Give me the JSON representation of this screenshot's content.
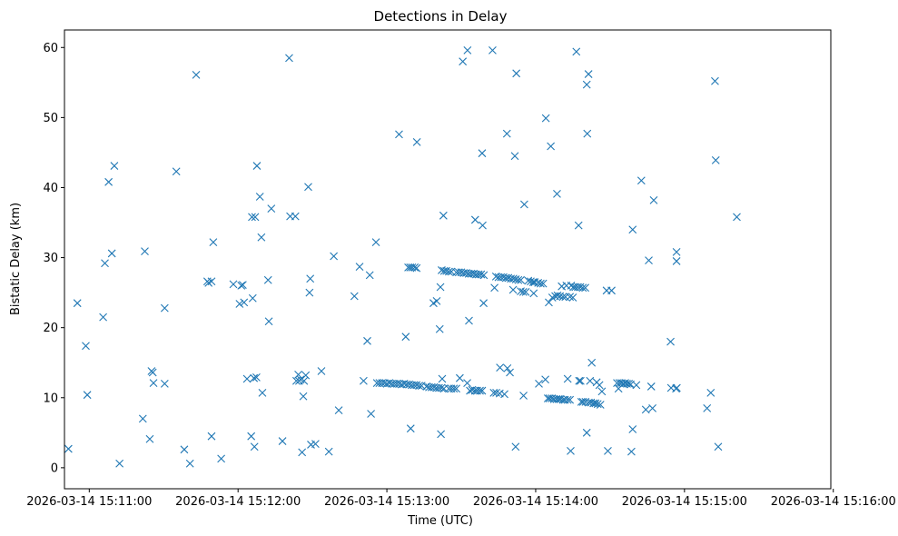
{
  "chart_data": {
    "type": "scatter",
    "title": "Detections in Delay",
    "xlabel": "Time (UTC)",
    "ylabel": "Bistatic Delay (km)",
    "x_unit": "seconds after 2026-03-14 15:10:50",
    "xlim": [
      0,
      309
    ],
    "ylim": [
      -3,
      62.5
    ],
    "marker": "x",
    "color": "#1f77b4",
    "grid": false,
    "xticks": [
      {
        "value": 10,
        "label": "2026-03-14 15:11:00"
      },
      {
        "value": 70,
        "label": "2026-03-14 15:12:00"
      },
      {
        "value": 130,
        "label": "2026-03-14 15:13:00"
      },
      {
        "value": 190,
        "label": "2026-03-14 15:14:00"
      },
      {
        "value": 250,
        "label": "2026-03-14 15:15:00"
      },
      {
        "value": 310,
        "label": "2026-03-14 15:16:00"
      }
    ],
    "yticks": [
      {
        "value": 0,
        "label": "0"
      },
      {
        "value": 10,
        "label": "10"
      },
      {
        "value": 20,
        "label": "20"
      },
      {
        "value": 30,
        "label": "30"
      },
      {
        "value": 40,
        "label": "40"
      },
      {
        "value": 50,
        "label": "50"
      },
      {
        "value": 60,
        "label": "60"
      }
    ],
    "series": [
      {
        "name": "detections",
        "points": [
          [
            1.6,
            2.7
          ],
          [
            5.2,
            23.5
          ],
          [
            8.6,
            17.4
          ],
          [
            9.2,
            10.4
          ],
          [
            15.6,
            21.5
          ],
          [
            16.3,
            29.2
          ],
          [
            17.8,
            40.8
          ],
          [
            19.1,
            30.6
          ],
          [
            20.1,
            43.1
          ],
          [
            22.2,
            0.6
          ],
          [
            31.6,
            7.0
          ],
          [
            32.4,
            30.9
          ],
          [
            34.4,
            4.1
          ],
          [
            35.1,
            13.8
          ],
          [
            35.6,
            13.6
          ],
          [
            35.9,
            12.1
          ],
          [
            40.4,
            22.8
          ],
          [
            40.4,
            12.0
          ],
          [
            45.1,
            42.3
          ],
          [
            48.3,
            2.6
          ],
          [
            50.6,
            0.6
          ],
          [
            53.1,
            56.1
          ],
          [
            57.6,
            26.6
          ],
          [
            58.1,
            26.4
          ],
          [
            59.3,
            26.6
          ],
          [
            59.3,
            4.5
          ],
          [
            60.0,
            32.2
          ],
          [
            63.2,
            1.3
          ],
          [
            68.1,
            26.2
          ],
          [
            70.6,
            23.4
          ],
          [
            71.3,
            26.0
          ],
          [
            71.9,
            26.1
          ],
          [
            72.4,
            23.6
          ],
          [
            73.6,
            12.7
          ],
          [
            75.3,
            4.5
          ],
          [
            75.6,
            35.8
          ],
          [
            75.9,
            24.2
          ],
          [
            76.4,
            12.8
          ],
          [
            76.6,
            3.0
          ],
          [
            76.9,
            35.8
          ],
          [
            77.4,
            12.9
          ],
          [
            77.6,
            43.1
          ],
          [
            78.8,
            38.7
          ],
          [
            79.4,
            32.9
          ],
          [
            79.8,
            10.7
          ],
          [
            82.1,
            26.8
          ],
          [
            82.4,
            20.9
          ],
          [
            83.4,
            37.0
          ],
          [
            87.9,
            3.8
          ],
          [
            90.6,
            58.5
          ],
          [
            91.0,
            35.9
          ],
          [
            93.1,
            35.9
          ],
          [
            93.5,
            12.4
          ],
          [
            94.3,
            13.3
          ],
          [
            94.6,
            12.4
          ],
          [
            95.2,
            12.6
          ],
          [
            95.8,
            2.2
          ],
          [
            96.3,
            10.2
          ],
          [
            96.6,
            12.4
          ],
          [
            97.3,
            13.2
          ],
          [
            98.3,
            40.1
          ],
          [
            98.8,
            25.0
          ],
          [
            99.1,
            27.0
          ],
          [
            99.4,
            3.3
          ],
          [
            101.2,
            3.4
          ],
          [
            103.6,
            13.8
          ],
          [
            106.6,
            2.3
          ],
          [
            108.6,
            30.2
          ],
          [
            110.6,
            8.2
          ],
          [
            116.9,
            24.5
          ],
          [
            119.0,
            28.7
          ],
          [
            120.6,
            12.4
          ],
          [
            122.1,
            18.1
          ],
          [
            123.1,
            27.5
          ],
          [
            123.6,
            7.7
          ],
          [
            125.6,
            32.2
          ],
          [
            126.0,
            12.1
          ],
          [
            127.0,
            12.1
          ],
          [
            128.0,
            12.1
          ],
          [
            129.0,
            12.1
          ],
          [
            130.0,
            12.0
          ],
          [
            131.0,
            12.1
          ],
          [
            132.0,
            12.0
          ],
          [
            133.0,
            12.0
          ],
          [
            134.0,
            12.0
          ],
          [
            134.9,
            47.6
          ],
          [
            135.0,
            12.0
          ],
          [
            136.0,
            11.9
          ],
          [
            137.0,
            12.0
          ],
          [
            137.6,
            18.7
          ],
          [
            138.0,
            11.9
          ],
          [
            138.6,
            28.6
          ],
          [
            139.0,
            11.9
          ],
          [
            139.4,
            28.6
          ],
          [
            139.6,
            5.6
          ],
          [
            140.0,
            11.8
          ],
          [
            140.2,
            28.6
          ],
          [
            141.0,
            11.8
          ],
          [
            141.2,
            28.6
          ],
          [
            142.0,
            11.8
          ],
          [
            142.0,
            28.5
          ],
          [
            142.1,
            46.5
          ],
          [
            143.0,
            11.7
          ],
          [
            144.0,
            11.7
          ],
          [
            146.0,
            11.6
          ],
          [
            147.0,
            11.5
          ],
          [
            148.0,
            11.5
          ],
          [
            148.8,
            23.5
          ],
          [
            149.0,
            11.5
          ],
          [
            150.0,
            11.4
          ],
          [
            150.1,
            23.8
          ],
          [
            151.0,
            11.4
          ],
          [
            151.3,
            19.8
          ],
          [
            151.6,
            25.8
          ],
          [
            151.8,
            4.8
          ],
          [
            152.0,
            11.4
          ],
          [
            152.1,
            28.2
          ],
          [
            152.3,
            12.7
          ],
          [
            152.8,
            36.0
          ],
          [
            153.0,
            11.3
          ],
          [
            153.1,
            28.1
          ],
          [
            154.0,
            28.1
          ],
          [
            155.0,
            28.0
          ],
          [
            155.0,
            11.3
          ],
          [
            156.0,
            28.0
          ],
          [
            156.0,
            11.3
          ],
          [
            157.0,
            11.3
          ],
          [
            158.0,
            27.9
          ],
          [
            158.0,
            11.3
          ],
          [
            159.0,
            27.9
          ],
          [
            159.4,
            12.8
          ],
          [
            160.0,
            27.9
          ],
          [
            160.6,
            58.0
          ],
          [
            161.0,
            27.8
          ],
          [
            162.0,
            27.8
          ],
          [
            162.4,
            12.1
          ],
          [
            162.5,
            59.6
          ],
          [
            163.0,
            27.7
          ],
          [
            163.1,
            21.0
          ],
          [
            163.5,
            11.0
          ],
          [
            164.0,
            27.7
          ],
          [
            164.4,
            11.1
          ],
          [
            165.0,
            27.7
          ],
          [
            165.5,
            11.0
          ],
          [
            165.6,
            35.4
          ],
          [
            166.0,
            27.6
          ],
          [
            166.4,
            11.0
          ],
          [
            167.0,
            27.6
          ],
          [
            167.5,
            11.0
          ],
          [
            168.0,
            27.6
          ],
          [
            168.4,
            44.9
          ],
          [
            168.4,
            11.0
          ],
          [
            168.6,
            34.6
          ],
          [
            169.0,
            23.5
          ],
          [
            169.1,
            27.5
          ],
          [
            172.6,
            59.6
          ],
          [
            173.1,
            10.7
          ],
          [
            173.4,
            25.7
          ],
          [
            174.0,
            27.3
          ],
          [
            174.1,
            10.7
          ],
          [
            175.0,
            27.2
          ],
          [
            175.5,
            10.6
          ],
          [
            175.6,
            14.3
          ],
          [
            176.0,
            27.2
          ],
          [
            177.0,
            27.2
          ],
          [
            177.4,
            10.5
          ],
          [
            178.0,
            27.1
          ],
          [
            178.4,
            47.7
          ],
          [
            178.6,
            14.2
          ],
          [
            179.0,
            27.1
          ],
          [
            179.6,
            13.6
          ],
          [
            180.0,
            27.0
          ],
          [
            180.9,
            25.4
          ],
          [
            181.0,
            27.0
          ],
          [
            181.6,
            44.5
          ],
          [
            181.9,
            3.0
          ],
          [
            182.0,
            26.9
          ],
          [
            182.2,
            56.3
          ],
          [
            183.0,
            26.8
          ],
          [
            184.0,
            25.2
          ],
          [
            184.0,
            26.8
          ],
          [
            185.0,
            25.1
          ],
          [
            185.1,
            10.3
          ],
          [
            185.4,
            37.6
          ],
          [
            186.0,
            25.1
          ],
          [
            187.0,
            26.7
          ],
          [
            188.0,
            26.6
          ],
          [
            189.0,
            26.5
          ],
          [
            189.2,
            24.9
          ],
          [
            189.6,
            26.5
          ],
          [
            191.0,
            26.4
          ],
          [
            191.3,
            12.0
          ],
          [
            192.0,
            26.3
          ],
          [
            193.0,
            26.3
          ],
          [
            193.9,
            12.6
          ],
          [
            194.1,
            49.9
          ],
          [
            194.9,
            9.9
          ],
          [
            195.3,
            23.6
          ],
          [
            195.6,
            9.9
          ],
          [
            196.1,
            45.9
          ],
          [
            196.5,
            9.9
          ],
          [
            196.7,
            24.3
          ],
          [
            197.4,
            9.8
          ],
          [
            197.9,
            24.5
          ],
          [
            198.4,
            9.8
          ],
          [
            198.6,
            39.1
          ],
          [
            198.8,
            24.6
          ],
          [
            199.3,
            9.8
          ],
          [
            199.8,
            24.5
          ],
          [
            200.0,
            9.8
          ],
          [
            200.5,
            25.9
          ],
          [
            201.0,
            24.4
          ],
          [
            201.1,
            9.7
          ],
          [
            201.8,
            9.7
          ],
          [
            202.0,
            24.4
          ],
          [
            202.4,
            26.0
          ],
          [
            202.9,
            9.7
          ],
          [
            202.9,
            12.7
          ],
          [
            203.8,
            24.4
          ],
          [
            203.8,
            9.7
          ],
          [
            204.1,
            2.4
          ],
          [
            204.3,
            26.0
          ],
          [
            205.0,
            24.3
          ],
          [
            205.2,
            25.8
          ],
          [
            206.0,
            25.8
          ],
          [
            206.4,
            59.4
          ],
          [
            207.0,
            25.8
          ],
          [
            207.3,
            34.6
          ],
          [
            207.5,
            12.4
          ],
          [
            208.0,
            25.8
          ],
          [
            208.1,
            12.4
          ],
          [
            208.4,
            9.4
          ],
          [
            209.0,
            25.7
          ],
          [
            209.1,
            9.4
          ],
          [
            210.0,
            25.7
          ],
          [
            210.1,
            9.4
          ],
          [
            210.6,
            5.0
          ],
          [
            210.6,
            54.7
          ],
          [
            210.8,
            47.7
          ],
          [
            211.3,
            56.2
          ],
          [
            211.4,
            9.3
          ],
          [
            211.9,
            12.4
          ],
          [
            212.3,
            9.3
          ],
          [
            212.6,
            15.0
          ],
          [
            213.3,
            9.2
          ],
          [
            214.1,
            9.2
          ],
          [
            214.6,
            12.2
          ],
          [
            215.0,
            9.1
          ],
          [
            215.7,
            11.8
          ],
          [
            216.1,
            9.0
          ],
          [
            216.7,
            10.9
          ],
          [
            218.6,
            25.3
          ],
          [
            219.1,
            2.4
          ],
          [
            220.6,
            25.3
          ],
          [
            222.8,
            12.1
          ],
          [
            223.4,
            11.3
          ],
          [
            223.8,
            12.1
          ],
          [
            224.6,
            12.1
          ],
          [
            225.4,
            12.0
          ],
          [
            226.1,
            12.1
          ],
          [
            226.8,
            12.0
          ],
          [
            227.6,
            12.0
          ],
          [
            228.3,
            11.9
          ],
          [
            228.6,
            2.3
          ],
          [
            229.1,
            34.0
          ],
          [
            229.1,
            5.5
          ],
          [
            230.6,
            11.8
          ],
          [
            232.6,
            41.0
          ],
          [
            234.4,
            8.3
          ],
          [
            235.6,
            29.6
          ],
          [
            236.6,
            11.6
          ],
          [
            237.1,
            8.5
          ],
          [
            237.6,
            38.2
          ],
          [
            244.4,
            18.0
          ],
          [
            244.6,
            11.4
          ],
          [
            246.6,
            11.3
          ],
          [
            246.8,
            30.8
          ],
          [
            246.8,
            29.5
          ],
          [
            246.9,
            11.4
          ],
          [
            259.1,
            8.5
          ],
          [
            260.6,
            10.7
          ],
          [
            262.3,
            55.2
          ],
          [
            262.6,
            43.9
          ],
          [
            263.6,
            3.0
          ],
          [
            271.1,
            35.8
          ]
        ]
      }
    ]
  }
}
